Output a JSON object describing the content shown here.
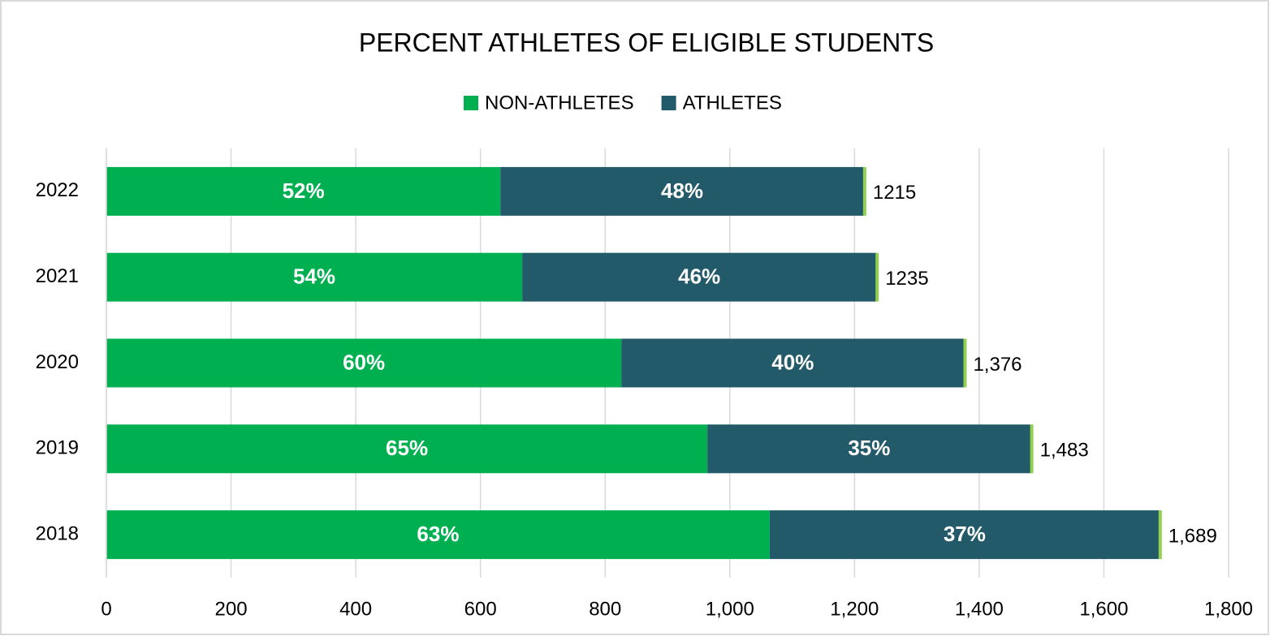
{
  "chart_data": {
    "type": "bar",
    "orientation": "horizontal",
    "stacked": true,
    "title": "PERCENT ATHLETES OF ELIGIBLE STUDENTS",
    "categories": [
      "2018",
      "2019",
      "2020",
      "2021",
      "2022"
    ],
    "series": [
      {
        "name": "NON-ATHLETES",
        "color": "#00b050",
        "values": [
          1064,
          964,
          826,
          667,
          632
        ],
        "segment_labels": [
          "63%",
          "65%",
          "60%",
          "54%",
          "52%"
        ]
      },
      {
        "name": "ATHLETES",
        "color": "#235a6a",
        "values": [
          625,
          519,
          550,
          568,
          583
        ],
        "segment_labels": [
          "37%",
          "35%",
          "40%",
          "46%",
          "48%"
        ]
      }
    ],
    "totals": [
      1689,
      1483,
      1376,
      1235,
      1215
    ],
    "total_labels": [
      "1,689",
      "1,483",
      "1,376",
      "1235",
      "1215"
    ],
    "total_color": "#92d050",
    "xlim": [
      0,
      1800
    ],
    "xticks": [
      0,
      200,
      400,
      600,
      800,
      {
        "value": 1000,
        "label": "1,000"
      },
      {
        "value": 1200,
        "label": "1,200"
      },
      {
        "value": 1400,
        "label": "1,400"
      },
      {
        "value": 1600,
        "label": "1,600"
      },
      {
        "value": 1800,
        "label": "1,800"
      }
    ],
    "grid": true,
    "legend": "top"
  }
}
